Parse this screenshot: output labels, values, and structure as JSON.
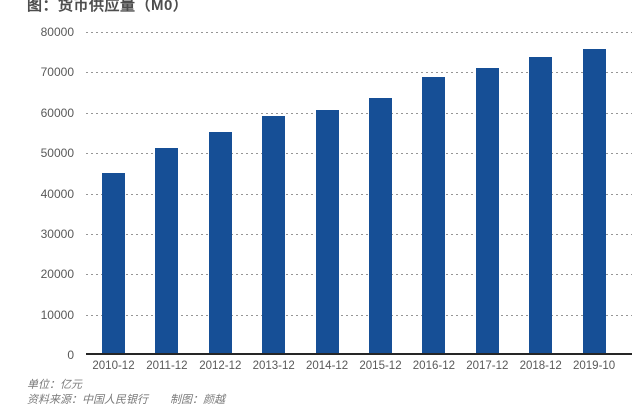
{
  "title": "图：货币供应量（M0）",
  "footer": {
    "unit_note": "单位：亿元",
    "source_note": "资料来源：中国人民银行　　制图：颜越"
  },
  "colors": {
    "bar": "#164f96",
    "axis": "#262626",
    "gridline": "#969696",
    "tick_label": "#595959",
    "title": "#4d4d4d",
    "note": "#7a7a7a",
    "background": "#ffffff"
  },
  "chart_data": {
    "type": "bar",
    "title": "图：货币供应量（M0）",
    "unit": "亿元",
    "categories": [
      "2010-12",
      "2011-12",
      "2012-12",
      "2013-12",
      "2014-12",
      "2015-12",
      "2016-12",
      "2017-12",
      "2018-12",
      "2019-10"
    ],
    "values": [
      44600,
      50700,
      54700,
      58600,
      60300,
      63200,
      68300,
      70600,
      73200,
      75400
    ],
    "xlabel": "",
    "ylabel": "",
    "ylim": [
      0,
      80000
    ],
    "ytick_step": 10000,
    "yticks": [
      0,
      10000,
      20000,
      30000,
      40000,
      50000,
      60000,
      70000,
      80000
    ],
    "grid": "horizontal-dotted",
    "legend": "none",
    "source": "中国人民银行"
  }
}
